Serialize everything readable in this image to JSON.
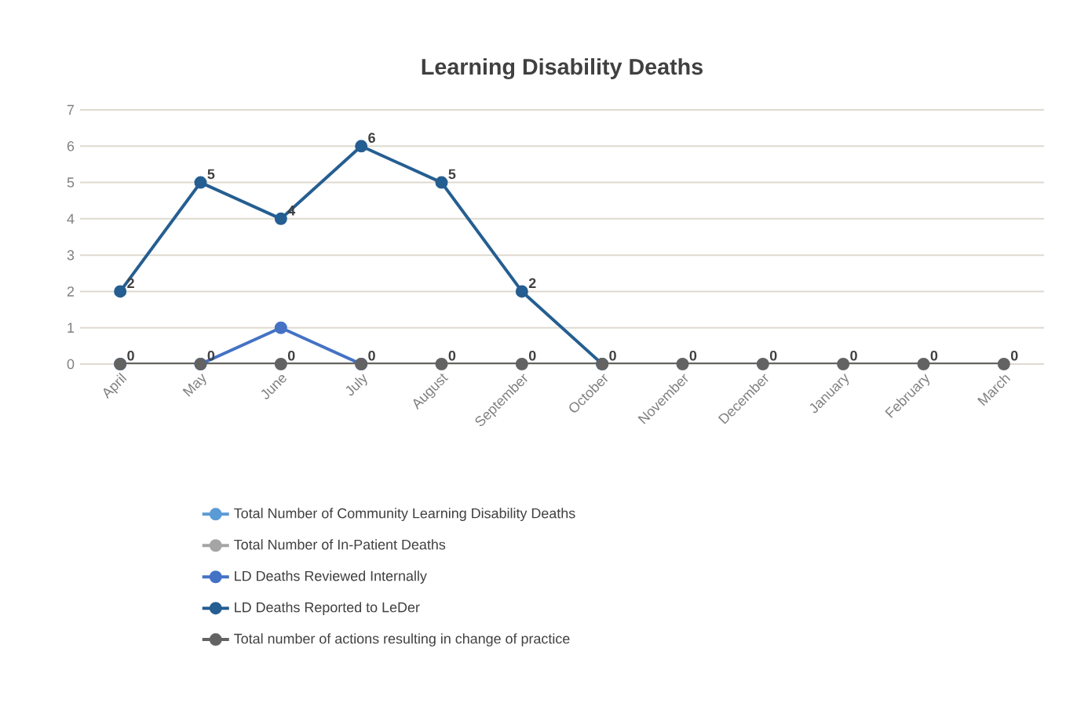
{
  "chart_data": {
    "type": "line",
    "title": "Learning Disability Deaths",
    "categories": [
      "April",
      "May",
      "June",
      "July",
      "August",
      "September",
      "October",
      "November",
      "December",
      "January",
      "February",
      "March"
    ],
    "series": [
      {
        "name": "Total Number of Community Learning Disability Deaths",
        "color": "#5b9bd5",
        "values": [
          null,
          null,
          null,
          null,
          null,
          null,
          null,
          null,
          null,
          null,
          null,
          null
        ]
      },
      {
        "name": "Total Number of In-Patient Deaths",
        "color": "#a5a5a5",
        "values": [
          null,
          null,
          null,
          null,
          null,
          null,
          null,
          null,
          null,
          null,
          null,
          null
        ]
      },
      {
        "name": "LD Deaths Reviewed Internally",
        "color": "#4472c4",
        "values": [
          0,
          0,
          1,
          0,
          null,
          null,
          null,
          null,
          null,
          null,
          null,
          null
        ]
      },
      {
        "name": "LD Deaths Reported to LeDer",
        "color": "#255e91",
        "values": [
          2,
          5,
          4,
          6,
          5,
          2,
          0,
          null,
          null,
          null,
          null,
          null
        ],
        "value_labels": [
          "2",
          "5",
          "4",
          "6",
          "5",
          "2",
          null,
          null,
          null,
          null,
          null,
          null
        ]
      },
      {
        "name": "Total number of actions resulting in change of practice",
        "color": "#636363",
        "values": [
          0,
          0,
          0,
          0,
          0,
          0,
          0,
          0,
          0,
          0,
          0,
          0
        ],
        "value_labels": [
          "0",
          "0",
          "0",
          "0",
          "0",
          "0",
          "0",
          "0",
          "0",
          "0",
          "0",
          "0"
        ]
      }
    ],
    "ylim": [
      0,
      7
    ],
    "yticks": [
      0,
      1,
      2,
      3,
      4,
      5,
      6,
      7
    ],
    "grid": "y",
    "legend": "bottom",
    "marker": "circle",
    "line_style": "solid"
  }
}
